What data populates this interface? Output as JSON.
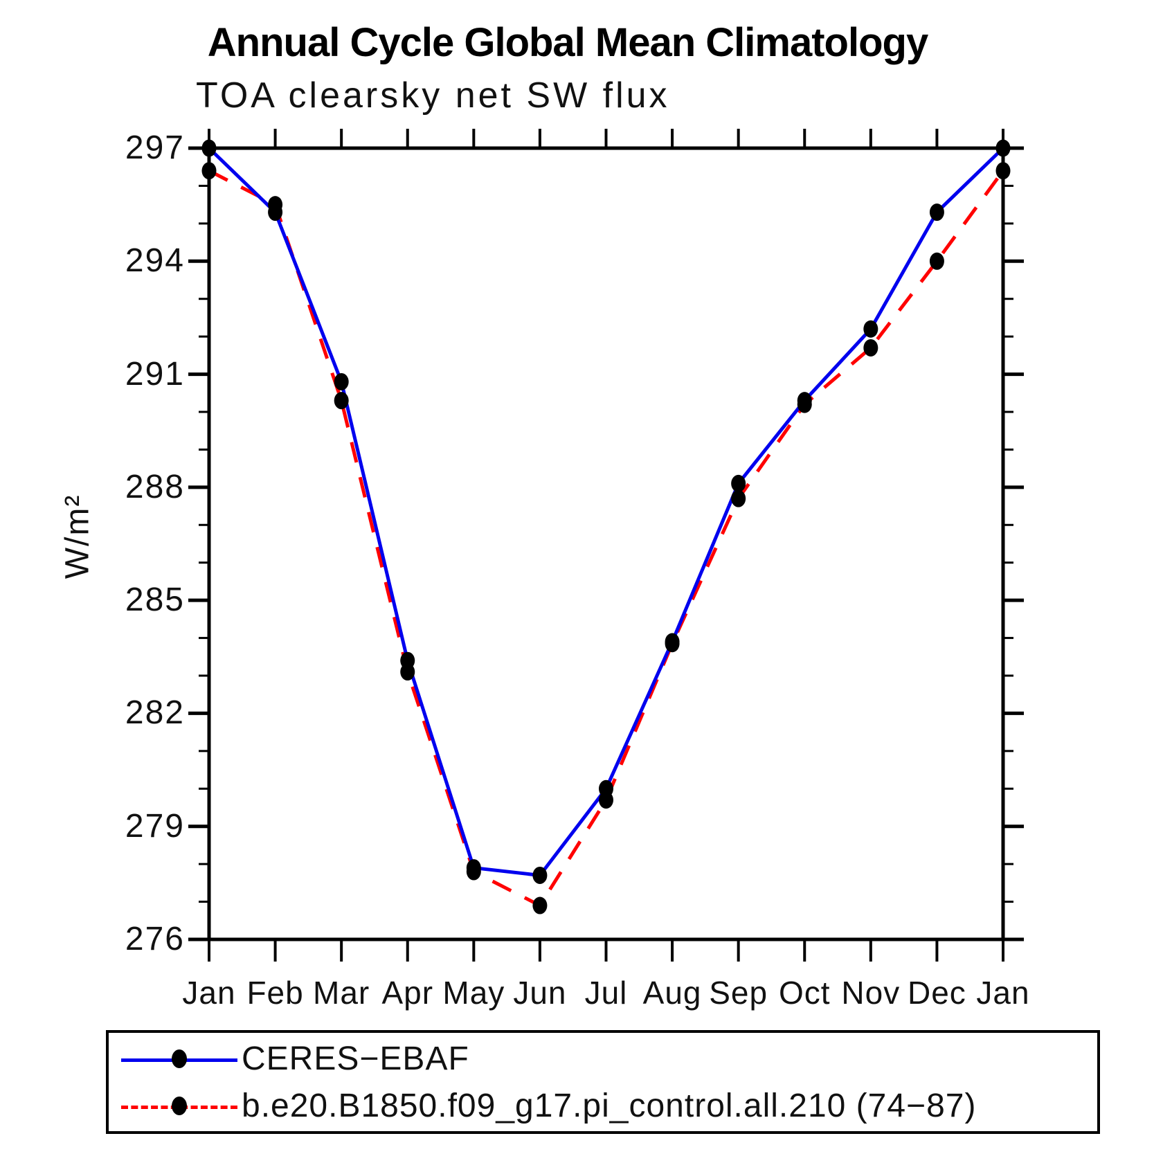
{
  "title": "Annual Cycle Global Mean Climatology",
  "subtitle": "TOA clearsky net SW flux",
  "ylabel": "W/m²",
  "chart_data": {
    "type": "line",
    "x_tick_labels": [
      "Jan",
      "Feb",
      "Mar",
      "Apr",
      "May",
      "Jun",
      "Jul",
      "Aug",
      "Sep",
      "Oct",
      "Nov",
      "Dec",
      "Jan"
    ],
    "ylim": [
      276,
      297
    ],
    "y_major_ticks": [
      276,
      279,
      282,
      285,
      288,
      291,
      294,
      297
    ],
    "y_minor_step": 1,
    "grid": "off",
    "legend_position": "bottom",
    "axis_color": "#000000",
    "marker_color": "#000000",
    "series": [
      {
        "name": "CERES−EBAF",
        "color": "#0000ee",
        "style": "solid",
        "marker": "circle",
        "values": [
          297.0,
          295.3,
          290.8,
          283.4,
          277.9,
          277.7,
          280.0,
          283.9,
          288.1,
          290.3,
          292.2,
          295.3,
          297.0
        ]
      },
      {
        "name": "b.e20.B1850.f09_g17.pi_control.all.210 (74−87)",
        "color": "#ff0000",
        "style": "dashed",
        "marker": "circle",
        "values": [
          296.4,
          295.5,
          290.3,
          283.1,
          277.8,
          276.9,
          279.7,
          283.85,
          287.7,
          290.2,
          291.7,
          294.0,
          296.4
        ]
      }
    ]
  }
}
